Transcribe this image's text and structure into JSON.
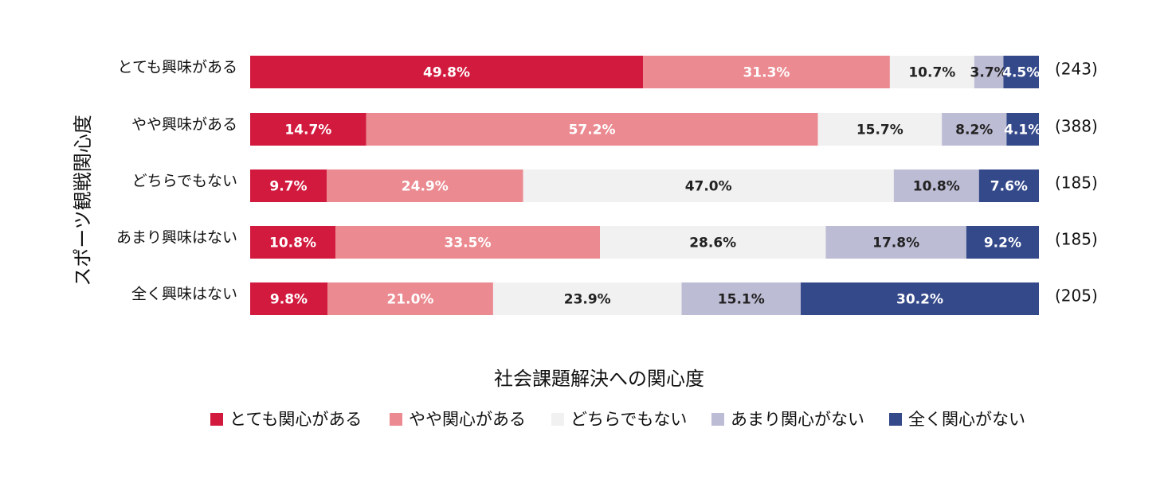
{
  "chart_data": {
    "type": "bar",
    "orientation": "horizontal",
    "stacked": true,
    "normalized": true,
    "title": "",
    "xlabel": "社会課題解決への関心度",
    "ylabel": "スポーツ観戦関心度",
    "xlim": [
      0,
      100
    ],
    "grid": false,
    "legend_position": "bottom",
    "categories": [
      "とても興味がある",
      "やや興味がある",
      "どちらでもない",
      "あまり興味はない",
      "全く興味はない"
    ],
    "counts": [
      "(243)",
      "(388)",
      "(185)",
      "(185)",
      "(205)"
    ],
    "series": [
      {
        "name": "とても関心がある",
        "color": "#d21a3e",
        "label_color": "#ffffff",
        "values": [
          49.8,
          14.7,
          9.7,
          10.8,
          9.8
        ],
        "labels": [
          "49.8%",
          "14.7%",
          "9.7%",
          "10.8%",
          "9.8%"
        ]
      },
      {
        "name": "やや関心がある",
        "color": "#eb8a90",
        "label_color": "#ffffff",
        "values": [
          31.3,
          57.2,
          24.9,
          33.5,
          21.0
        ],
        "labels": [
          "31.3%",
          "57.2%",
          "24.9%",
          "33.5%",
          "21.0%"
        ]
      },
      {
        "name": "どちらでもない",
        "color": "#f1f1f1",
        "label_color": "#222222",
        "values": [
          10.7,
          15.7,
          47.0,
          28.6,
          23.9
        ],
        "labels": [
          "10.7%",
          "15.7%",
          "47.0%",
          "28.6%",
          "23.9%"
        ]
      },
      {
        "name": "あまり関心がない",
        "color": "#bdbcd5",
        "label_color": "#222222",
        "values": [
          3.7,
          8.2,
          10.8,
          17.8,
          15.1
        ],
        "labels": [
          "3.7%",
          "8.2%",
          "10.8%",
          "17.8%",
          "15.1%"
        ]
      },
      {
        "name": "全く関心がない",
        "color": "#34498a",
        "label_color": "#ffffff",
        "values": [
          4.5,
          4.1,
          7.6,
          9.2,
          30.2
        ],
        "labels": [
          "4.5%",
          "4.1%",
          "7.6%",
          "9.2%",
          "30.2%"
        ]
      }
    ]
  }
}
